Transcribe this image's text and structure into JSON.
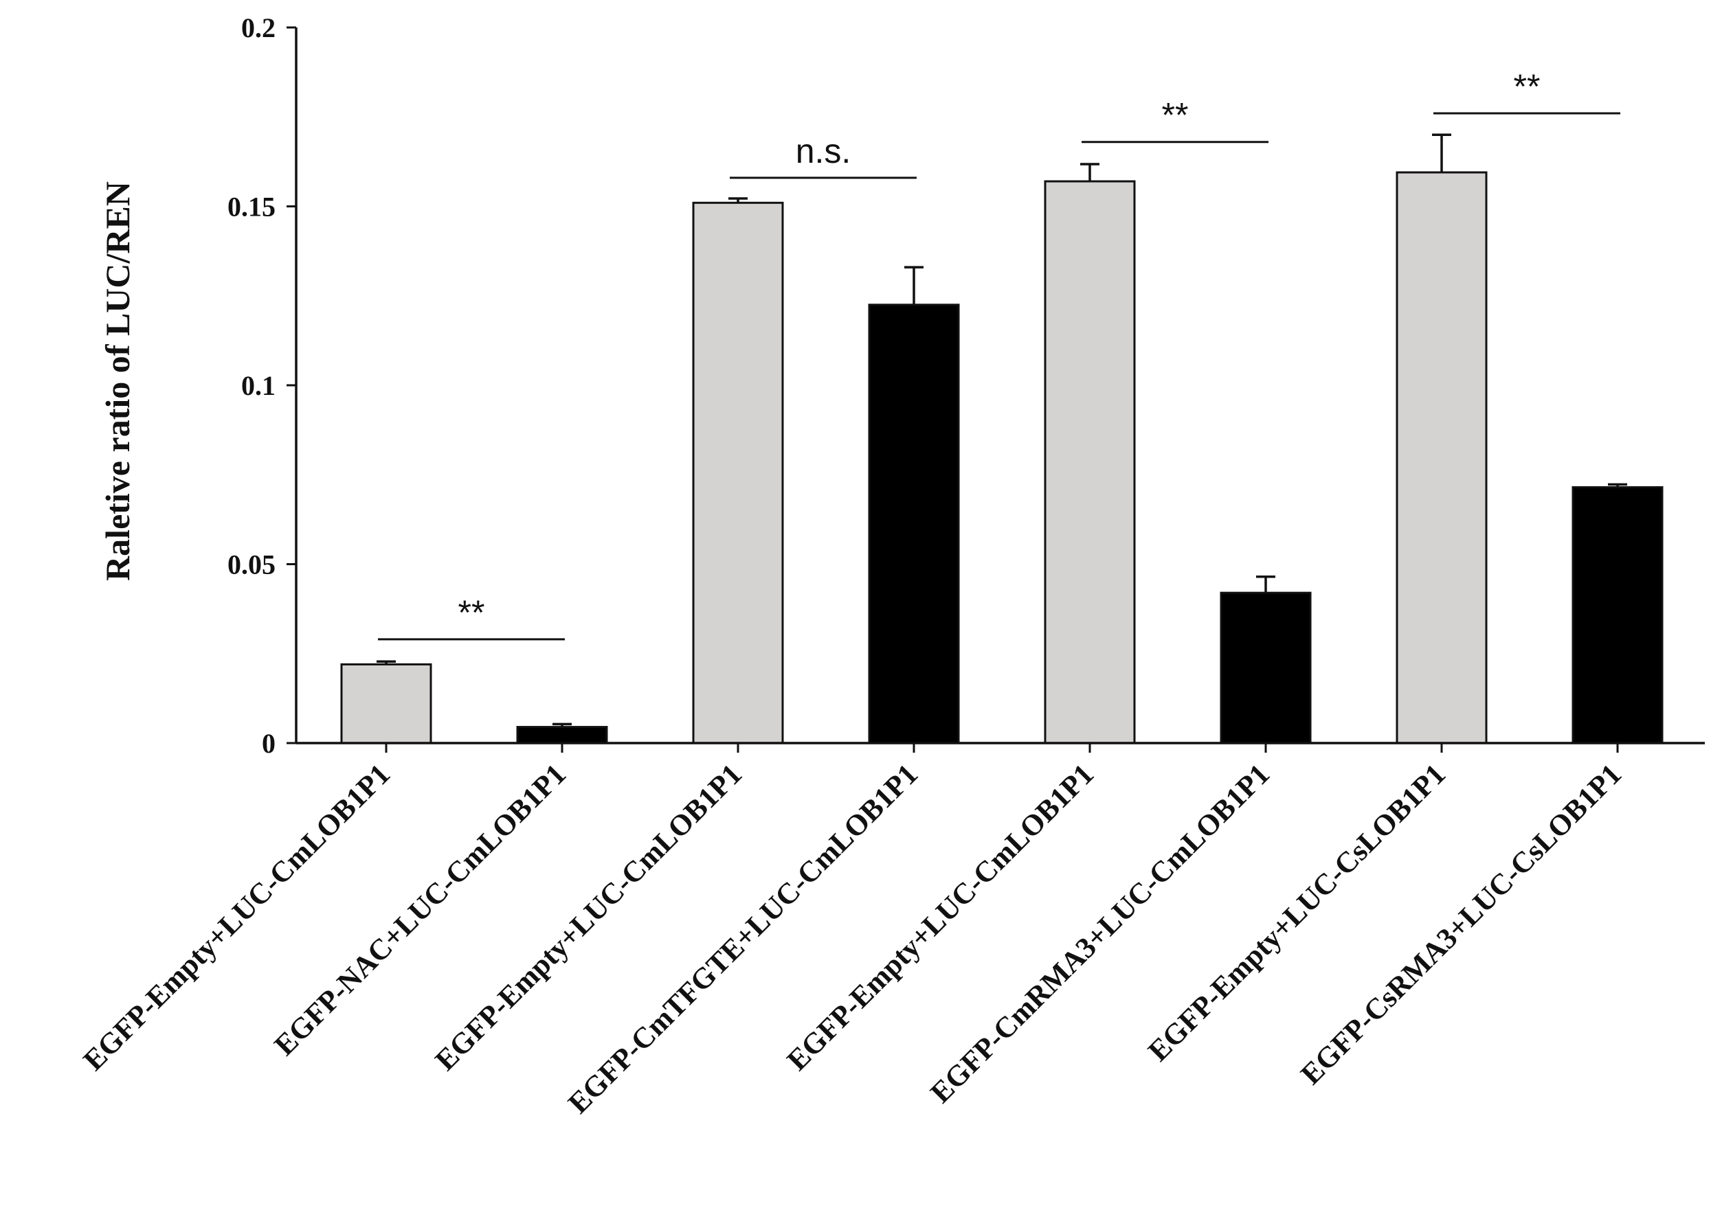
{
  "chart_data": {
    "type": "bar",
    "title": "",
    "xlabel": "",
    "ylabel": "Raletive ratio of  LUC/REN",
    "ylim": [
      0,
      0.2
    ],
    "yticks": [
      0,
      0.05,
      0.1,
      0.15,
      0.2
    ],
    "ytick_labels": [
      "0",
      "0.05",
      "0.1",
      "0.15",
      "0.2"
    ],
    "categories": [
      "EGFP-Empty+LUC-CmLOB1P1",
      "EGFP-NAC+LUC-CmLOB1P1",
      "EGFP-Empty+LUC-CmLOB1P1",
      "EGFP-CmTFGTE+LUC-CmLOB1P1",
      "EGFP-Empty+LUC-CmLOB1P1",
      "EGFP-CmRMA3+LUC-CmLOB1P1",
      "EGFP-Empty+LUC-CsLOB1P1",
      "EGFP-CsRMA3+LUC-CsLOB1P1"
    ],
    "values": [
      0.022,
      0.0045,
      0.151,
      0.1225,
      0.157,
      0.042,
      0.1595,
      0.0715
    ],
    "errors": [
      0.0008,
      0.0008,
      0.0012,
      0.0105,
      0.0048,
      0.0045,
      0.0105,
      0.0008
    ],
    "bar_colors": [
      "#d5d2d2",
      "#000000",
      "#d5d2d2",
      "#000000",
      "#d5d2d2",
      "#000000",
      "#d5d2d2",
      "#000000"
    ],
    "grid": false,
    "significance": [
      {
        "text": "**",
        "from_index": 0,
        "to_index": 1,
        "y": 0.029
      },
      {
        "text": "n.s.",
        "from_index": 2,
        "to_index": 3,
        "y": 0.158
      },
      {
        "text": "**",
        "from_index": 4,
        "to_index": 5,
        "y": 0.168
      },
      {
        "text": "**",
        "from_index": 6,
        "to_index": 7,
        "y": 0.176
      }
    ]
  }
}
